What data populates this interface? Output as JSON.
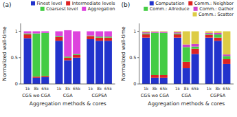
{
  "chart_data": [
    {
      "type": "bar",
      "stacked": true,
      "title": "(a)",
      "ylabel": "Normalized wall-time",
      "xlabel": "Aggregation methods & cores",
      "groups": [
        "CGS wo CGA",
        "CGA",
        "CGPSA"
      ],
      "categories": [
        "1k",
        "8k",
        "65k",
        "1k",
        "8k",
        "65k",
        "1k",
        "8k",
        "65k"
      ],
      "series": [
        {
          "name": "Finest level",
          "color": "#2233cc",
          "values": [
            0.87,
            0.12,
            0.13,
            0.82,
            0.45,
            0.5,
            0.85,
            0.82,
            0.82
          ]
        },
        {
          "name": "Intermediate levels",
          "color": "#dd2222",
          "values": [
            0.07,
            0.02,
            0.02,
            0.07,
            0.05,
            0.05,
            0.06,
            0.06,
            0.06
          ]
        },
        {
          "name": "Coarsest level",
          "color": "#44cc44",
          "values": [
            0.02,
            0.82,
            0.82,
            0.02,
            0.02,
            0.02,
            0.01,
            0.02,
            0.02
          ]
        },
        {
          "name": "Aggregation",
          "color": "#dd44dd",
          "values": [
            0.04,
            0.04,
            0.03,
            0.09,
            0.5,
            0.43,
            0.08,
            0.1,
            0.1
          ]
        }
      ],
      "ylim": [
        0,
        1.15
      ],
      "yticks": [
        0,
        0.5,
        1
      ],
      "grid": false,
      "legend": "upper right"
    },
    {
      "type": "bar",
      "stacked": true,
      "title": "(b)",
      "ylabel": "Normalized wall-time",
      "xlabel": "Aggregation methods & cores",
      "groups": [
        "CGS wo CGA",
        "CGA",
        "CGPSA"
      ],
      "categories": [
        "1k",
        "8k",
        "65k",
        "1k",
        "8k",
        "65k",
        "1k",
        "8k",
        "65k"
      ],
      "series": [
        {
          "name": "Computation",
          "color": "#2233cc",
          "values": [
            0.88,
            0.12,
            0.12,
            0.88,
            0.3,
            0.57,
            0.88,
            0.82,
            0.38
          ]
        },
        {
          "name": "Comm.: Neighbor",
          "color": "#dd2222",
          "values": [
            0.06,
            0.05,
            0.05,
            0.06,
            0.12,
            0.1,
            0.05,
            0.06,
            0.09
          ]
        },
        {
          "name": "Comm.: Allreduce",
          "color": "#44cc44",
          "values": [
            0.02,
            0.8,
            0.8,
            0.02,
            0.28,
            0.04,
            0.02,
            0.06,
            0.06
          ]
        },
        {
          "name": "Comm.: Gather",
          "color": "#cc44cc",
          "values": [
            0.02,
            0.02,
            0.02,
            0.02,
            0.05,
            0.05,
            0.02,
            0.03,
            0.03
          ]
        },
        {
          "name": "Comm.: Scatter",
          "color": "#ddcc44",
          "values": [
            0.02,
            0.01,
            0.01,
            0.02,
            0.25,
            0.24,
            0.03,
            0.03,
            0.44
          ]
        }
      ],
      "ylim": [
        0,
        1.15
      ],
      "yticks": [
        0,
        0.5,
        1
      ],
      "grid": false,
      "legend": "upper right"
    }
  ]
}
